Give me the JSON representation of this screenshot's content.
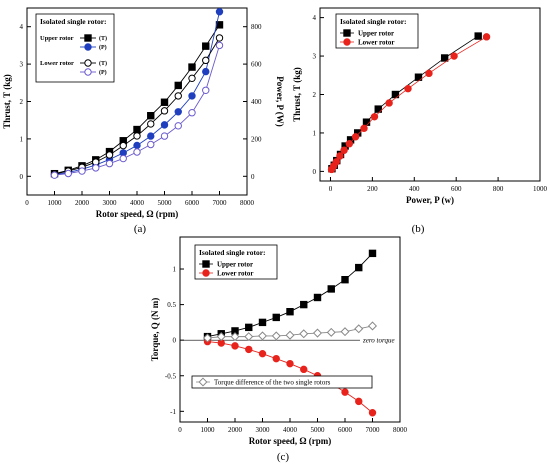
{
  "panels": {
    "a": "(a)",
    "b": "(b)",
    "c": "(c)"
  },
  "chart_data": [
    {
      "panel": "a",
      "type": "line",
      "xlabel": "Rotor speed, Ω (rpm)",
      "ylabel": "Thrust, T (kg)",
      "y2label": "Power, P (W)",
      "xlim": [
        0,
        8000
      ],
      "ylim": [
        -0.5,
        4.5
      ],
      "y2lim": [
        -100,
        900
      ],
      "xticks": [
        0,
        1000,
        2000,
        3000,
        4000,
        5000,
        6000,
        7000,
        8000
      ],
      "yticks": [
        0,
        1,
        2,
        3,
        4
      ],
      "y2ticks": [
        0,
        200,
        400,
        600,
        800
      ],
      "legend": {
        "title": "Isolated single rotor:",
        "groups": [
          "Upper rotor",
          "Lower rotor"
        ],
        "entry_labels": [
          "(T)",
          "(P)",
          "(T)",
          "(P)"
        ],
        "placement": "top-left"
      },
      "x": [
        1000,
        1500,
        2000,
        2500,
        3000,
        3500,
        4000,
        4500,
        5000,
        5500,
        6000,
        6500,
        7000
      ],
      "series": [
        {
          "group": "Upper rotor",
          "label": "(T)",
          "axis": "left",
          "marker": "square-filled",
          "color": "#000000",
          "values": [
            0.07,
            0.16,
            0.28,
            0.44,
            0.66,
            0.95,
            1.25,
            1.62,
            1.98,
            2.43,
            2.92,
            3.48,
            4.05
          ]
        },
        {
          "group": "Upper rotor",
          "label": "(P)",
          "axis": "right",
          "marker": "circle-filled",
          "color": "#1f3fbf",
          "values": [
            9,
            20,
            38,
            60,
            90,
            125,
            165,
            215,
            275,
            345,
            430,
            560,
            880
          ]
        },
        {
          "group": "Lower rotor",
          "label": "(T)",
          "axis": "left",
          "marker": "circle-open",
          "color": "#000000",
          "values": [
            0.06,
            0.14,
            0.24,
            0.38,
            0.57,
            0.82,
            1.08,
            1.4,
            1.75,
            2.15,
            2.62,
            3.1,
            3.7
          ]
        },
        {
          "group": "Lower rotor",
          "label": "(P)",
          "axis": "right",
          "marker": "circle-open",
          "color": "#6a5acd",
          "values": [
            6,
            15,
            28,
            45,
            68,
            95,
            130,
            170,
            215,
            270,
            340,
            460,
            700
          ]
        }
      ]
    },
    {
      "panel": "b",
      "type": "scatter",
      "xlabel": "Power, P (w)",
      "ylabel": "Thrust, T (kg)",
      "xlim": [
        -50,
        1000
      ],
      "ylim": [
        -0.25,
        4.25
      ],
      "xticks": [
        0,
        200,
        400,
        600,
        800,
        1000
      ],
      "yticks": [
        0,
        1,
        2,
        3,
        4
      ],
      "legend": {
        "title": "Isolated single rotor:",
        "placement": "top-left"
      },
      "series": [
        {
          "name": "Upper rotor",
          "marker": "square-filled",
          "color": "#000000",
          "x": [
            7,
            18,
            30,
            48,
            70,
            96,
            130,
            172,
            228,
            310,
            420,
            545,
            705
          ],
          "y": [
            0.07,
            0.16,
            0.28,
            0.44,
            0.66,
            0.82,
            1.0,
            1.28,
            1.62,
            2.0,
            2.45,
            2.95,
            3.52
          ]
        },
        {
          "name": "Lower rotor",
          "marker": "circle-filled",
          "color": "#e8231c",
          "x": [
            5,
            15,
            28,
            45,
            65,
            90,
            120,
            160,
            210,
            280,
            370,
            470,
            590,
            745
          ],
          "y": [
            0.05,
            0.14,
            0.25,
            0.4,
            0.55,
            0.72,
            0.9,
            1.12,
            1.42,
            1.78,
            2.15,
            2.55,
            3.0,
            3.5
          ]
        }
      ]
    },
    {
      "panel": "c",
      "type": "line",
      "xlabel": "Rotor speed, Ω (rpm)",
      "ylabel": "Torque, Q (N m)",
      "xlim": [
        0,
        8000
      ],
      "ylim": [
        -1.15,
        1.45
      ],
      "xticks": [
        0,
        1000,
        2000,
        3000,
        4000,
        5000,
        6000,
        7000,
        8000
      ],
      "yticks": [
        -1.0,
        -0.5,
        0.0,
        0.5,
        1.0
      ],
      "legend": {
        "title": "Isolated single rotor:",
        "placement": "top-left"
      },
      "annotations": [
        "zero torque",
        "Torque difference of the two single rotors"
      ],
      "x": [
        1000,
        1500,
        2000,
        2500,
        3000,
        3500,
        4000,
        4500,
        5000,
        5500,
        6000,
        6500,
        7000
      ],
      "series": [
        {
          "name": "Upper rotor",
          "marker": "square-filled",
          "color": "#000000",
          "values": [
            0.05,
            0.09,
            0.13,
            0.18,
            0.25,
            0.32,
            0.4,
            0.5,
            0.6,
            0.72,
            0.85,
            1.02,
            1.22
          ]
        },
        {
          "name": "Lower rotor",
          "marker": "circle-filled",
          "color": "#e8231c",
          "values": [
            -0.02,
            -0.04,
            -0.08,
            -0.13,
            -0.19,
            -0.26,
            -0.33,
            -0.41,
            -0.5,
            -0.61,
            -0.73,
            -0.86,
            -1.02
          ]
        },
        {
          "name": "Torque difference of the two single rotors",
          "marker": "diamond-open",
          "color": "#888888",
          "values": [
            0.03,
            0.05,
            0.05,
            0.05,
            0.06,
            0.06,
            0.07,
            0.09,
            0.1,
            0.11,
            0.12,
            0.16,
            0.2
          ]
        }
      ]
    }
  ]
}
